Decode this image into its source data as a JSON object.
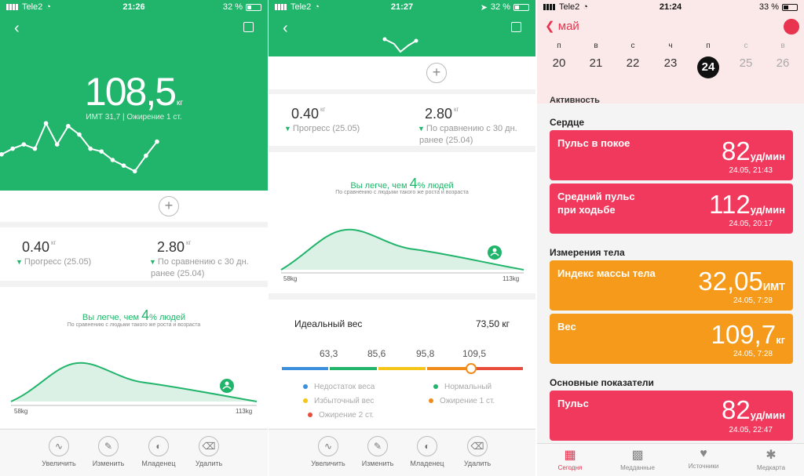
{
  "panel1": {
    "status": {
      "carrier": "Tele2",
      "time": "21:26",
      "battery": "32 %"
    },
    "weight": "108,5",
    "weight_unit": "кг",
    "bmi_line": "ИМТ 31,7 | Ожирение 1 ст.",
    "trend": [
      0.48,
      0.56,
      0.62,
      0.56,
      0.92,
      0.62,
      0.88,
      0.76,
      0.56,
      0.52,
      0.4,
      0.32,
      0.24,
      0.46,
      0.66
    ],
    "stat_left": {
      "value": "0.40",
      "unit": "кг",
      "label": "Прогресс (25.05)"
    },
    "stat_right": {
      "value": "2.80",
      "unit": "кг",
      "label1": "По сравнению с 30 дн.",
      "label2": "ранее (25.04)"
    },
    "lighter_pre": "Вы легче, чем",
    "lighter_num": "4",
    "lighter_post": "% людей",
    "lighter_sub": "По сравнению с людьми такого же роста и возраста",
    "dist_min": "58kg",
    "dist_max": "113kg",
    "bottom": [
      "Увеличить",
      "Изменить",
      "Младенец",
      "Удалить"
    ]
  },
  "panel2": {
    "status": {
      "carrier": "Tele2",
      "time": "21:27",
      "battery": "32 %"
    },
    "stat_left": {
      "value": "0.40",
      "unit": "кг",
      "label": "Прогресс (25.05)"
    },
    "stat_right": {
      "value": "2.80",
      "unit": "кг",
      "label1": "По сравнению с 30 дн.",
      "label2": "ранее (25.04)"
    },
    "lighter_pre": "Вы легче, чем",
    "lighter_num": "4",
    "lighter_post": "% людей",
    "lighter_sub": "По сравнению с людьми такого же роста и возраста",
    "dist_min": "58kg",
    "dist_max": "113kg",
    "ideal_title": "Идеальный вес",
    "ideal_value": "73,50 кг",
    "scale": [
      "63,3",
      "85,6",
      "95,8",
      "109,5"
    ],
    "legend": [
      {
        "label": "Недостаток веса",
        "color": "#3b8fdc"
      },
      {
        "label": "Нормальный",
        "color": "#21b46b"
      },
      {
        "label": "Избыточный вес",
        "color": "#f5c518"
      },
      {
        "label": "Ожирение 1 ст.",
        "color": "#f08c1c"
      },
      {
        "label": "Ожирение 2 ст.",
        "color": "#e84c3d"
      }
    ],
    "bottom": [
      "Увеличить",
      "Изменить",
      "Младенец",
      "Удалить"
    ]
  },
  "panel3": {
    "status": {
      "carrier": "Tele2",
      "time": "21:24",
      "battery": "33 %"
    },
    "back_label": "май",
    "days": [
      {
        "l": "п",
        "n": "20"
      },
      {
        "l": "в",
        "n": "21"
      },
      {
        "l": "с",
        "n": "22"
      },
      {
        "l": "ч",
        "n": "23"
      },
      {
        "l": "п",
        "n": "24"
      },
      {
        "l": "с",
        "n": "25"
      },
      {
        "l": "в",
        "n": "26"
      }
    ],
    "cut_section": "Активность",
    "sections": {
      "heart": "Сердце",
      "body": "Измерения тела",
      "main": "Основные показатели"
    },
    "cards": [
      {
        "title": "Пульс в покое",
        "value": "82",
        "unit": "уд/мин",
        "date": "24.05, 21:43"
      },
      {
        "title": "Средний пульс при ходьбе",
        "value": "112",
        "unit": "уд/мин",
        "date": "24.05, 20:17"
      },
      {
        "title": "Индекс массы тела",
        "value": "32,05",
        "unit": "ИМТ",
        "date": "24.05, 7:28"
      },
      {
        "title": "Вес",
        "value": "109,7",
        "unit": "кг",
        "date": "24.05, 7:28"
      },
      {
        "title": "Пульс",
        "value": "82",
        "unit": "уд/мин",
        "date": "24.05, 22:47"
      }
    ],
    "tabs": [
      "Сегодня",
      "Медданные",
      "Источники",
      "Медкарта"
    ]
  }
}
